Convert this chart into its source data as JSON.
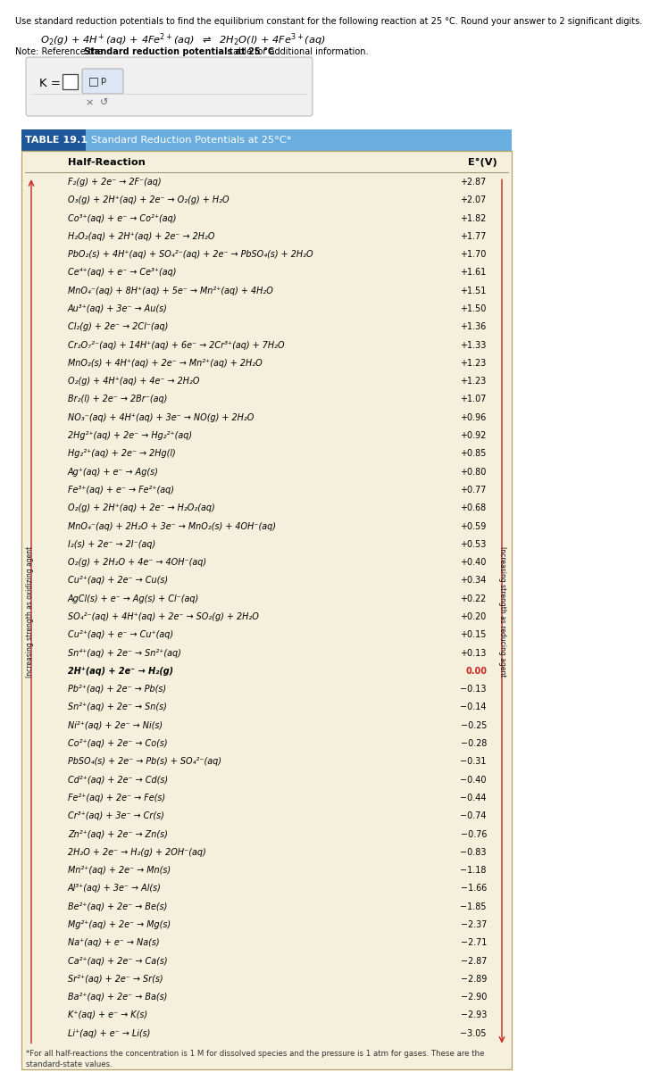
{
  "line1": "Use standard reduction potentials to find the equilibrium constant for the following reaction at 25 °C. Round your answer to 2 significant digits.",
  "note_plain": "Note: Reference the ",
  "note_bold": "Standard reduction potentials at 25 °C",
  "note_end": " table for additional information.",
  "table_label": "TABLE 19.1",
  "table_title": "Standard Reduction Potentials at 25°C*",
  "col1": "Half-Reaction",
  "col2": "E°(V)",
  "left_label": "Increasing strength as oxidizing agent",
  "right_label": "Increasing strength as reducing agent",
  "footnote": "*For all half-reactions the concentration is 1 M for dissolved species and the pressure is 1 atm for gases. These are the\nstandard-state values.",
  "bg_color": "#f5f0dc",
  "header_blue": "#6aaee0",
  "header_dark_blue": "#1e5799",
  "red": "#cc2222",
  "rows": [
    [
      "F₂(g) + 2e⁻ → 2F⁻(aq)",
      "+2.87"
    ],
    [
      "O₃(g) + 2H⁺(aq) + 2e⁻ → O₂(g) + H₂O",
      "+2.07"
    ],
    [
      "Co³⁺(aq) + e⁻ → Co²⁺(aq)",
      "+1.82"
    ],
    [
      "H₂O₂(aq) + 2H⁺(aq) + 2e⁻ → 2H₂O",
      "+1.77"
    ],
    [
      "PbO₂(s) + 4H⁺(aq) + SO₄²⁻(aq) + 2e⁻ → PbSO₄(s) + 2H₂O",
      "+1.70"
    ],
    [
      "Ce⁴⁺(aq) + e⁻ → Ce³⁺(aq)",
      "+1.61"
    ],
    [
      "MnO₄⁻(aq) + 8H⁺(aq) + 5e⁻ → Mn²⁺(aq) + 4H₂O",
      "+1.51"
    ],
    [
      "Au³⁺(aq) + 3e⁻ → Au(s)",
      "+1.50"
    ],
    [
      "Cl₂(g) + 2e⁻ → 2Cl⁻(aq)",
      "+1.36"
    ],
    [
      "Cr₂O₇²⁻(aq) + 14H⁺(aq) + 6e⁻ → 2Cr³⁺(aq) + 7H₂O",
      "+1.33"
    ],
    [
      "MnO₂(s) + 4H⁺(aq) + 2e⁻ → Mn²⁺(aq) + 2H₂O",
      "+1.23"
    ],
    [
      "O₂(g) + 4H⁺(aq) + 4e⁻ → 2H₂O",
      "+1.23"
    ],
    [
      "Br₂(l) + 2e⁻ → 2Br⁻(aq)",
      "+1.07"
    ],
    [
      "NO₃⁻(aq) + 4H⁺(aq) + 3e⁻ → NO(g) + 2H₂O",
      "+0.96"
    ],
    [
      "2Hg²⁺(aq) + 2e⁻ → Hg₂²⁺(aq)",
      "+0.92"
    ],
    [
      "Hg₂²⁺(aq) + 2e⁻ → 2Hg(l)",
      "+0.85"
    ],
    [
      "Ag⁺(aq) + e⁻ → Ag(s)",
      "+0.80"
    ],
    [
      "Fe³⁺(aq) + e⁻ → Fe²⁺(aq)",
      "+0.77"
    ],
    [
      "O₂(g) + 2H⁺(aq) + 2e⁻ → H₂O₂(aq)",
      "+0.68"
    ],
    [
      "MnO₄⁻(aq) + 2H₂O + 3e⁻ → MnO₂(s) + 4OH⁻(aq)",
      "+0.59"
    ],
    [
      "I₂(s) + 2e⁻ → 2I⁻(aq)",
      "+0.53"
    ],
    [
      "O₂(g) + 2H₂O + 4e⁻ → 4OH⁻(aq)",
      "+0.40"
    ],
    [
      "Cu²⁺(aq) + 2e⁻ → Cu(s)",
      "+0.34"
    ],
    [
      "AgCl(s) + e⁻ → Ag(s) + Cl⁻(aq)",
      "+0.22"
    ],
    [
      "SO₄²⁻(aq) + 4H⁺(aq) + 2e⁻ → SO₂(g) + 2H₂O",
      "+0.20"
    ],
    [
      "Cu²⁺(aq) + e⁻ → Cu⁺(aq)",
      "+0.15"
    ],
    [
      "Sn⁴⁺(aq) + 2e⁻ → Sn²⁺(aq)",
      "+0.13"
    ],
    [
      "2H⁺(aq) + 2e⁻ → H₂(g)",
      "0.00"
    ],
    [
      "Pb²⁺(aq) + 2e⁻ → Pb(s)",
      "−0.13"
    ],
    [
      "Sn²⁺(aq) + 2e⁻ → Sn(s)",
      "−0.14"
    ],
    [
      "Ni²⁺(aq) + 2e⁻ → Ni(s)",
      "−0.25"
    ],
    [
      "Co²⁺(aq) + 2e⁻ → Co(s)",
      "−0.28"
    ],
    [
      "PbSO₄(s) + 2e⁻ → Pb(s) + SO₄²⁻(aq)",
      "−0.31"
    ],
    [
      "Cd²⁺(aq) + 2e⁻ → Cd(s)",
      "−0.40"
    ],
    [
      "Fe²⁺(aq) + 2e⁻ → Fe(s)",
      "−0.44"
    ],
    [
      "Cr³⁺(aq) + 3e⁻ → Cr(s)",
      "−0.74"
    ],
    [
      "Zn²⁺(aq) + 2e⁻ → Zn(s)",
      "−0.76"
    ],
    [
      "2H₂O + 2e⁻ → H₂(g) + 2OH⁻(aq)",
      "−0.83"
    ],
    [
      "Mn²⁺(aq) + 2e⁻ → Mn(s)",
      "−1.18"
    ],
    [
      "Al³⁺(aq) + 3e⁻ → Al(s)",
      "−1.66"
    ],
    [
      "Be²⁺(aq) + 2e⁻ → Be(s)",
      "−1.85"
    ],
    [
      "Mg²⁺(aq) + 2e⁻ → Mg(s)",
      "−2.37"
    ],
    [
      "Na⁺(aq) + e⁻ → Na(s)",
      "−2.71"
    ],
    [
      "Ca²⁺(aq) + 2e⁻ → Ca(s)",
      "−2.87"
    ],
    [
      "Sr²⁺(aq) + 2e⁻ → Sr(s)",
      "−2.89"
    ],
    [
      "Ba²⁺(aq) + 2e⁻ → Ba(s)",
      "−2.90"
    ],
    [
      "K⁺(aq) + e⁻ → K(s)",
      "−2.93"
    ],
    [
      "Li⁺(aq) + e⁻ → Li(s)",
      "−3.05"
    ]
  ]
}
